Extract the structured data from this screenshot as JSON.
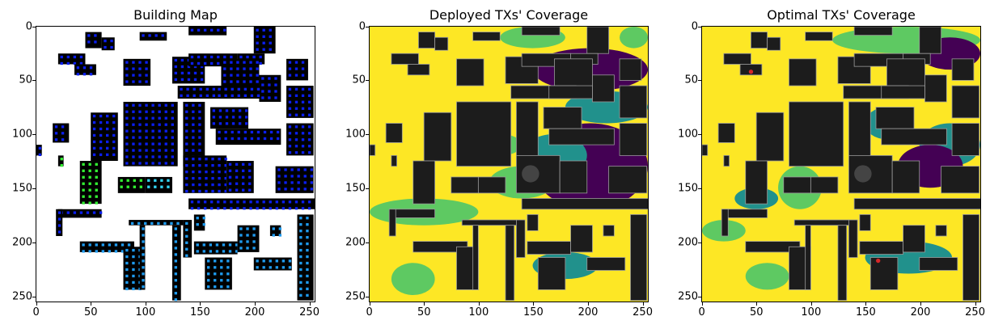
{
  "figure": {
    "panels": [
      {
        "title": "Building Map"
      },
      {
        "title": "Deployed TXs' Coverage"
      },
      {
        "title": "Optimal TXs' Coverage"
      }
    ]
  },
  "colors": {
    "building_black": "#000000",
    "tx_blue": "#0a1ef0",
    "tx_lightblue": "#1e9bf0",
    "tx_cyan": "#32d2f0",
    "tx_green": "#32f032",
    "coverage_yellow": "#fde725",
    "coverage_lightgreen": "#5ec962",
    "coverage_teal": "#21918c",
    "coverage_purple": "#440154",
    "coverage_building": "#1c1c1c",
    "tx_marker_red": "#d62728"
  },
  "chart_data": [
    {
      "type": "heatmap",
      "title": "Building Map",
      "xlim": [
        0,
        255
      ],
      "ylim": [
        255,
        0
      ],
      "xticks": [
        0,
        50,
        100,
        150,
        200,
        250
      ],
      "yticks": [
        0,
        50,
        100,
        150,
        200,
        250
      ],
      "grid": false
    },
    {
      "type": "heatmap",
      "title": "Deployed TXs' Coverage",
      "xlim": [
        0,
        255
      ],
      "ylim": [
        255,
        0
      ],
      "xticks": [
        0,
        50,
        100,
        150,
        200,
        250
      ],
      "yticks": [
        0,
        50,
        100,
        150,
        200,
        250
      ],
      "grid": false
    },
    {
      "type": "heatmap",
      "title": "Optimal TXs' Coverage",
      "xlim": [
        0,
        255
      ],
      "ylim": [
        255,
        0
      ],
      "xticks": [
        0,
        50,
        100,
        150,
        200,
        250
      ],
      "yticks": [
        0,
        50,
        100,
        150,
        200,
        250
      ],
      "grid": false,
      "tx_markers": [
        [
          45,
          42
        ],
        [
          162,
          218
        ]
      ]
    }
  ]
}
